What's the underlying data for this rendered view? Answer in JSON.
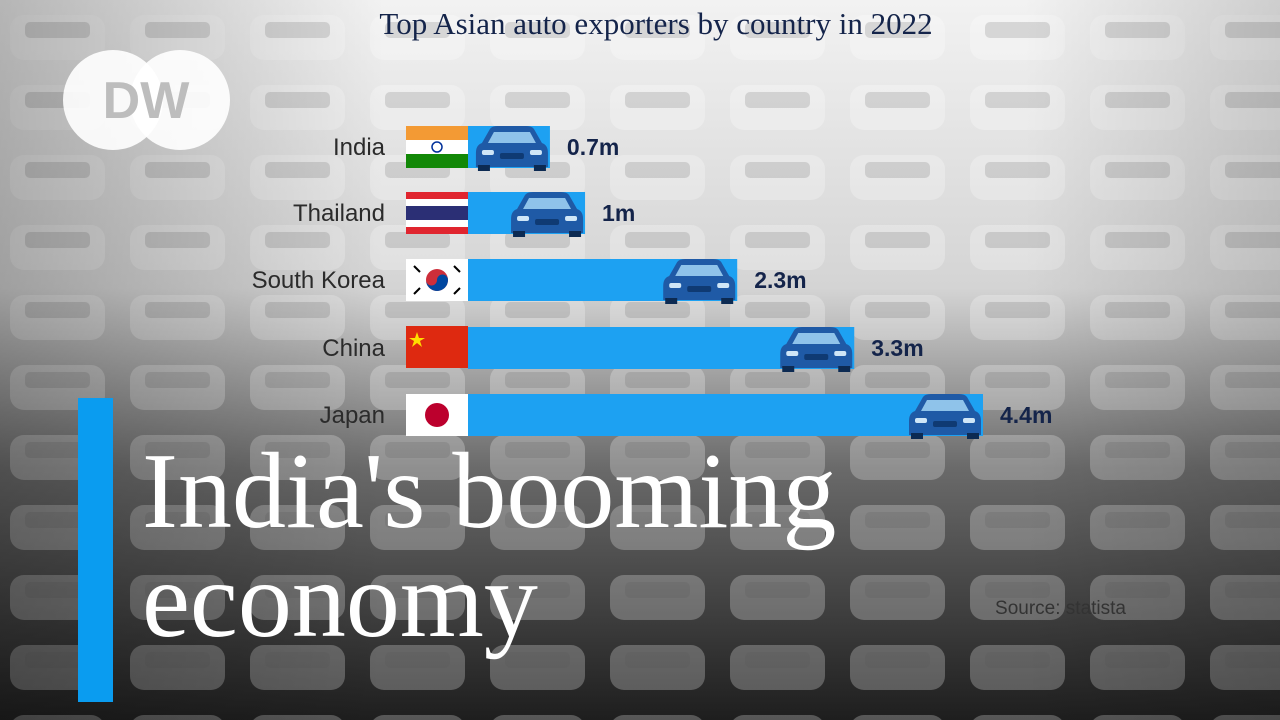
{
  "logo": "DW",
  "chart_data": {
    "type": "bar",
    "orientation": "horizontal",
    "title": "Top Asian auto exporters by country in 2022",
    "categories": [
      "India",
      "Thailand",
      "South Korea",
      "China",
      "Japan"
    ],
    "values": [
      0.7,
      1,
      2.3,
      3.3,
      4.4
    ],
    "value_labels": [
      "0.7m",
      "1m",
      "2.3m",
      "3.3m",
      "4.4m"
    ],
    "color": "#1da1f2",
    "source": "Source: statista"
  },
  "headline": [
    "India's booming",
    "economy"
  ]
}
